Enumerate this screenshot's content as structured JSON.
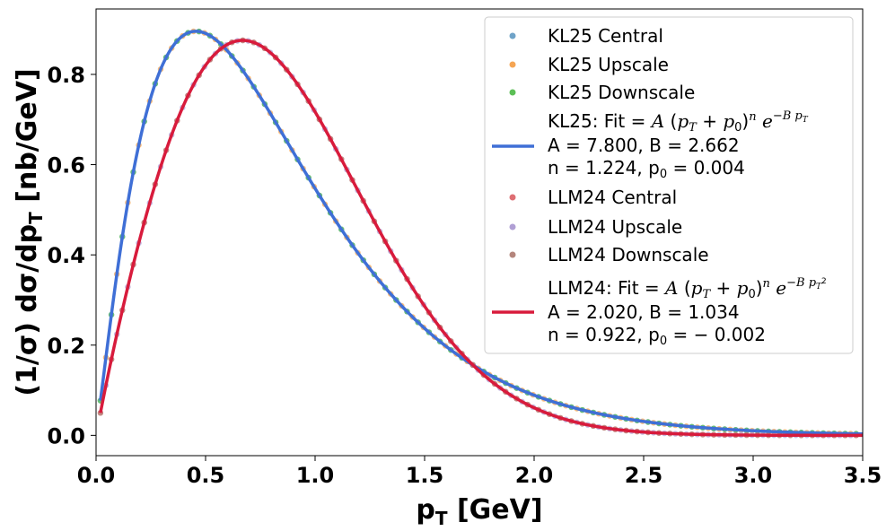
{
  "chart_data": {
    "type": "scatter",
    "xlabel": "p",
    "xlabel_sub": "T",
    "xlabel_unit": " [GeV]",
    "ylabel_prefix": "(1/σ) dσ/dp",
    "ylabel_sub": "T",
    "ylabel_unit": " [nb/GeV]",
    "xlim": [
      0.0,
      3.5
    ],
    "ylim": [
      -0.045,
      0.945
    ],
    "xticks": [
      "0.0",
      "0.5",
      "1.0",
      "1.5",
      "2.0",
      "2.5",
      "3.0",
      "3.5"
    ],
    "xtick_values": [
      0.0,
      0.5,
      1.0,
      1.5,
      2.0,
      2.5,
      3.0,
      3.5
    ],
    "yticks": [
      "0.0",
      "0.2",
      "0.4",
      "0.6",
      "0.8"
    ],
    "ytick_values": [
      0.0,
      0.2,
      0.4,
      0.6,
      0.8
    ],
    "grid": false,
    "legend_position": "top-right",
    "fits": [
      {
        "id": "kl25",
        "A": 7.8,
        "B": 2.662,
        "n": 1.224,
        "p0": 0.004,
        "exponent": "pT",
        "color": "#3f6fd6"
      },
      {
        "id": "llm24",
        "A": 2.02,
        "B": 1.034,
        "n": 0.922,
        "p0": -0.002,
        "exponent": "pT2",
        "color": "#d81b3c"
      }
    ],
    "series": [
      {
        "name": "KL25 Central",
        "color": "#6fa3c8",
        "fit": "kl25",
        "x_start": 0.02,
        "x_end": 3.48,
        "step": 0.05
      },
      {
        "name": "KL25 Upscale",
        "color": "#f5a553",
        "fit": "kl25",
        "x_start": 0.045,
        "x_end": 3.48,
        "step": 0.05
      },
      {
        "name": "KL25 Downscale",
        "color": "#5cbf56",
        "fit": "kl25",
        "x_start": 0.02,
        "x_end": 3.48,
        "step": 0.05
      },
      {
        "name": "LLM24 Central",
        "color": "#de6e73",
        "fit": "llm24",
        "x_start": 0.02,
        "x_end": 3.48,
        "step": 0.05
      },
      {
        "name": "LLM24 Upscale",
        "color": "#b09fd4",
        "fit": "llm24",
        "x_start": 0.045,
        "x_end": 3.48,
        "step": 0.05
      },
      {
        "name": "LLM24 Downscale",
        "color": "#b4857c",
        "fit": "llm24",
        "x_start": 0.02,
        "x_end": 3.48,
        "step": 0.05
      }
    ],
    "legend": {
      "kl25_central": "KL25 Central",
      "kl25_upscale": "KL25 Upscale",
      "kl25_downscale": "KL25 Downscale",
      "kl25_fit_title": "KL25: Fit",
      "kl25_fit_params_1": "A = 7.800,  B = 2.662",
      "kl25_fit_params_2": "n = 1.224,  p",
      "kl25_fit_params_2b": " = 0.004",
      "llm24_central": "LLM24 Central",
      "llm24_upscale": "LLM24 Upscale",
      "llm24_downscale": "LLM24 Downscale",
      "llm24_fit_title": "LLM24: Fit",
      "llm24_fit_params_1": "A = 2.020,  B = 1.034",
      "llm24_fit_params_2": "n = 0.922,  p",
      "llm24_fit_params_2b": " = − 0.002"
    }
  }
}
